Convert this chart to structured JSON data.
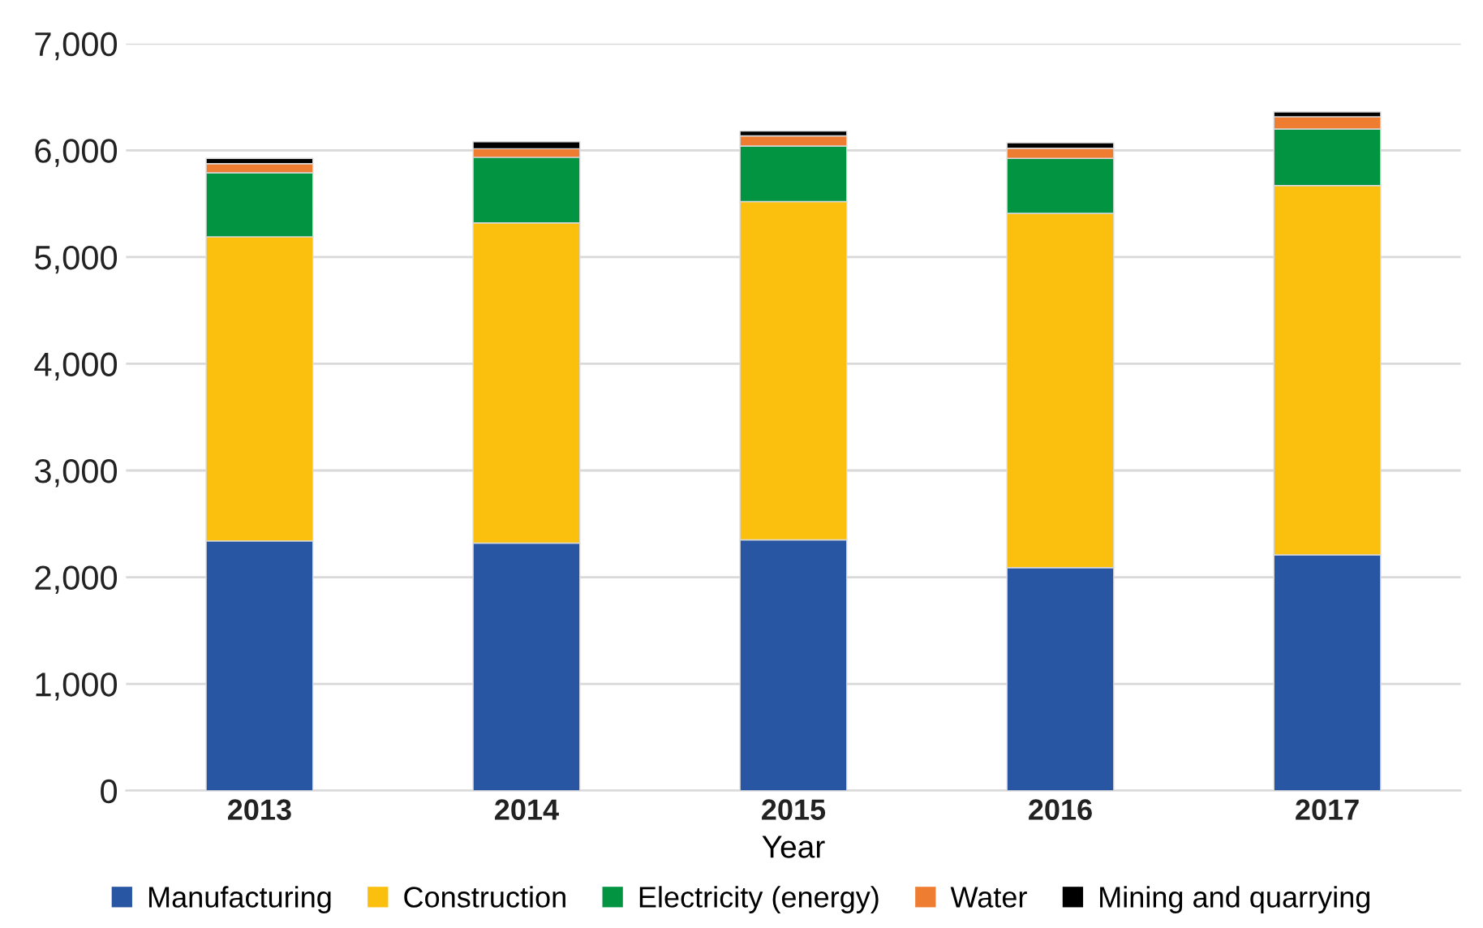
{
  "chart_data": {
    "type": "bar",
    "stacked": true,
    "xlabel": "Year",
    "categories": [
      "2013",
      "2014",
      "2015",
      "2016",
      "2017"
    ],
    "series": [
      {
        "name": "Manufacturing",
        "color": "#2856a3",
        "values": [
          2340,
          2320,
          2350,
          2090,
          2210
        ]
      },
      {
        "name": "Construction",
        "color": "#fbbf0d",
        "values": [
          2850,
          3000,
          3170,
          3320,
          3460
        ]
      },
      {
        "name": "Electricity (energy)",
        "color": "#039441",
        "values": [
          600,
          615,
          520,
          515,
          530
        ]
      },
      {
        "name": "Water",
        "color": "#ef7d31",
        "values": [
          85,
          80,
          95,
          95,
          115
        ]
      },
      {
        "name": "Mining and quarrying",
        "color": "#000000",
        "values": [
          50,
          65,
          45,
          50,
          45
        ]
      }
    ],
    "ylim": [
      0,
      7000
    ],
    "yticks": [
      {
        "value": 0,
        "label": "0"
      },
      {
        "value": 1000,
        "label": "1,000"
      },
      {
        "value": 2000,
        "label": "2,000"
      },
      {
        "value": 3000,
        "label": "3,000"
      },
      {
        "value": 4000,
        "label": "4,000"
      },
      {
        "value": 5000,
        "label": "5,000"
      },
      {
        "value": 6000,
        "label": "6,000"
      },
      {
        "value": 7000,
        "label": "7,000"
      }
    ],
    "grid": "y",
    "legend": "bottom"
  }
}
